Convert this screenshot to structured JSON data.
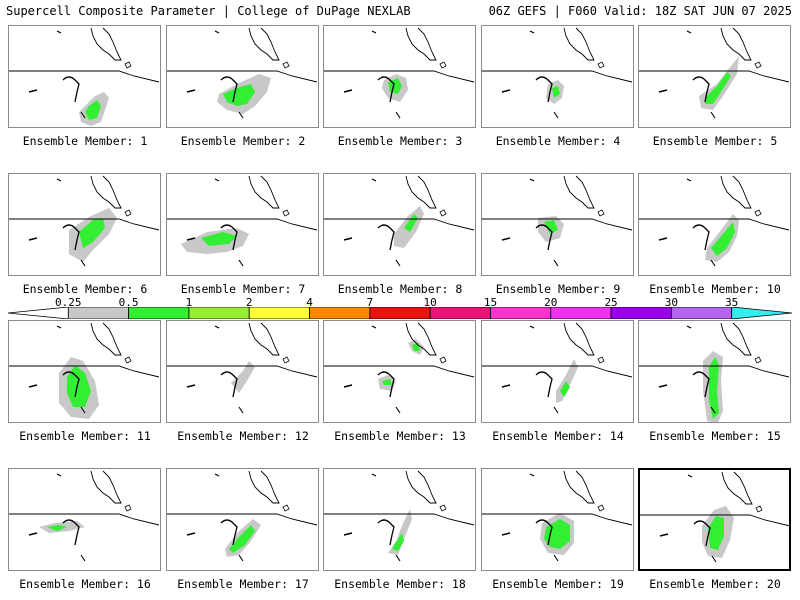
{
  "header": {
    "left_title": "Supercell Composite Parameter | College of DuPage NEXLAB",
    "right_title": "06Z GEFS | F060 Valid: 18Z SAT JUN 07 2025"
  },
  "colorbar": {
    "labels": [
      "0.25",
      "0.5",
      "1",
      "2",
      "4",
      "7",
      "10",
      "15",
      "20",
      "25",
      "30",
      "35"
    ],
    "colors": [
      "#ffffff",
      "#c8c8c8",
      "#33ee33",
      "#99ee33",
      "#ffff33",
      "#ff8800",
      "#ee1111",
      "#ee1177",
      "#ff33cc",
      "#ee33ee",
      "#9900ee",
      "#b366ee",
      "#33eeee"
    ]
  },
  "member_label_prefix": "Ensemble Member: ",
  "members": [
    {
      "label": "Ensemble Member: 1"
    },
    {
      "label": "Ensemble Member: 2"
    },
    {
      "label": "Ensemble Member: 3"
    },
    {
      "label": "Ensemble Member: 4"
    },
    {
      "label": "Ensemble Member: 5"
    },
    {
      "label": "Ensemble Member: 6"
    },
    {
      "label": "Ensemble Member: 7"
    },
    {
      "label": "Ensemble Member: 8"
    },
    {
      "label": "Ensemble Member: 9"
    },
    {
      "label": "Ensemble Member: 10"
    },
    {
      "label": "Ensemble Member: 11"
    },
    {
      "label": "Ensemble Member: 12"
    },
    {
      "label": "Ensemble Member: 13"
    },
    {
      "label": "Ensemble Member: 14"
    },
    {
      "label": "Ensemble Member: 15"
    },
    {
      "label": "Ensemble Member: 16"
    },
    {
      "label": "Ensemble Member: 17"
    },
    {
      "label": "Ensemble Member: 18"
    },
    {
      "label": "Ensemble Member: 19"
    },
    {
      "label": "Ensemble Member: 20"
    }
  ],
  "selected_member": "20",
  "colors": {
    "gray": "#c8c8c8",
    "green": "#33ee33",
    "lime": "#99ee33",
    "outline": "#000000"
  }
}
